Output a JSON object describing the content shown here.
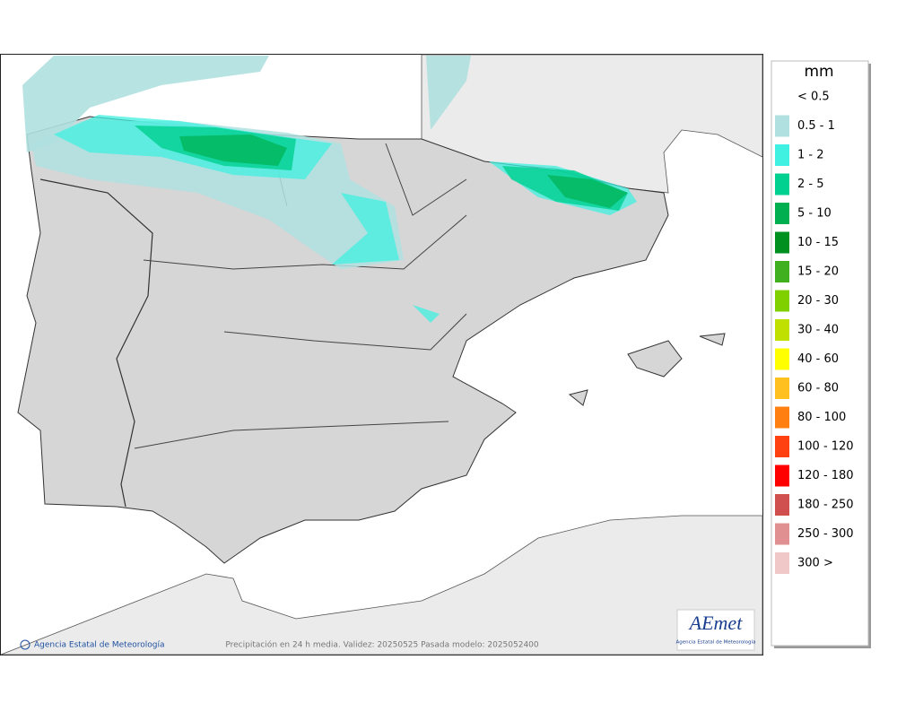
{
  "map": {
    "footer": "Precipitación en 24 h media. Validez: 20250525 Pasada modelo: 2025052400",
    "credit": "Agencia Estatal de Meteorología",
    "logo": {
      "name": "AEmet",
      "subtitle": "Agencia Estatal de Meteorología"
    }
  },
  "legend": {
    "title": "mm",
    "items": [
      {
        "label": "< 0.5",
        "color": null
      },
      {
        "label": "0.5 - 1",
        "color": "#b0e0e0"
      },
      {
        "label": "1 - 2",
        "color": "#40f0e0"
      },
      {
        "label": "2 - 5",
        "color": "#00d090"
      },
      {
        "label": "5 - 10",
        "color": "#00b050"
      },
      {
        "label": "10 - 15",
        "color": "#009020"
      },
      {
        "label": "15 - 20",
        "color": "#40b020"
      },
      {
        "label": "20 - 30",
        "color": "#80d000"
      },
      {
        "label": "30 - 40",
        "color": "#c0e000"
      },
      {
        "label": "40 - 60",
        "color": "#ffff00"
      },
      {
        "label": "60 - 80",
        "color": "#ffc020"
      },
      {
        "label": "80 - 100",
        "color": "#ff8010"
      },
      {
        "label": "100 - 120",
        "color": "#ff4010"
      },
      {
        "label": "120 - 180",
        "color": "#ff0000"
      },
      {
        "label": "180 - 250",
        "color": "#d05050"
      },
      {
        "label": "250 - 300",
        "color": "#e09090"
      },
      {
        "label": "300 >",
        "color": "#f0c8c8"
      }
    ]
  }
}
